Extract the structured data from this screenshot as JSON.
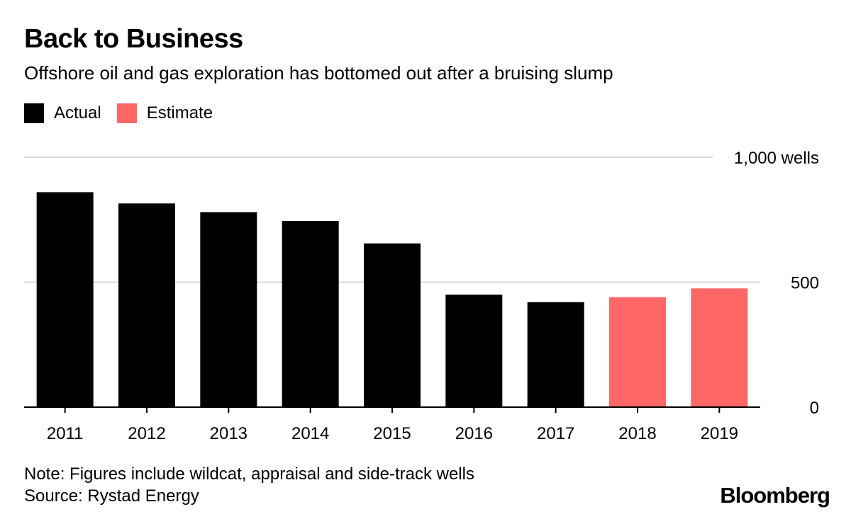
{
  "header": {
    "title": "Back to Business",
    "subtitle": "Offshore oil and gas exploration has bottomed out after a bruising slump"
  },
  "footer": {
    "note": "Note: Figures include wildcat, appraisal and side-track wells",
    "source": "Source: Rystad Energy",
    "brand": "Bloomberg"
  },
  "colors": {
    "actual": "#000000",
    "estimate": "#ff6666",
    "grid": "#d9d9d9"
  },
  "chart_data": {
    "type": "bar",
    "title": "Back to Business",
    "subtitle": "Offshore oil and gas exploration has bottomed out after a bruising slump",
    "xlabel": "",
    "ylabel": "",
    "categories": [
      "2011",
      "2012",
      "2013",
      "2014",
      "2015",
      "2016",
      "2017",
      "2018",
      "2019"
    ],
    "series": [
      {
        "name": "Actual",
        "values": [
          860,
          815,
          780,
          745,
          655,
          450,
          420,
          null,
          null
        ]
      },
      {
        "name": "Estimate",
        "values": [
          null,
          null,
          null,
          null,
          null,
          null,
          null,
          440,
          475
        ]
      }
    ],
    "ylim": [
      0,
      1000
    ],
    "yticks": [
      {
        "value": 0,
        "label": "0"
      },
      {
        "value": 500,
        "label": "500"
      },
      {
        "value": 1000,
        "label": "1,000 wells"
      }
    ],
    "grid": true,
    "legend": "top-left",
    "legend_entries": [
      "Actual",
      "Estimate"
    ]
  }
}
